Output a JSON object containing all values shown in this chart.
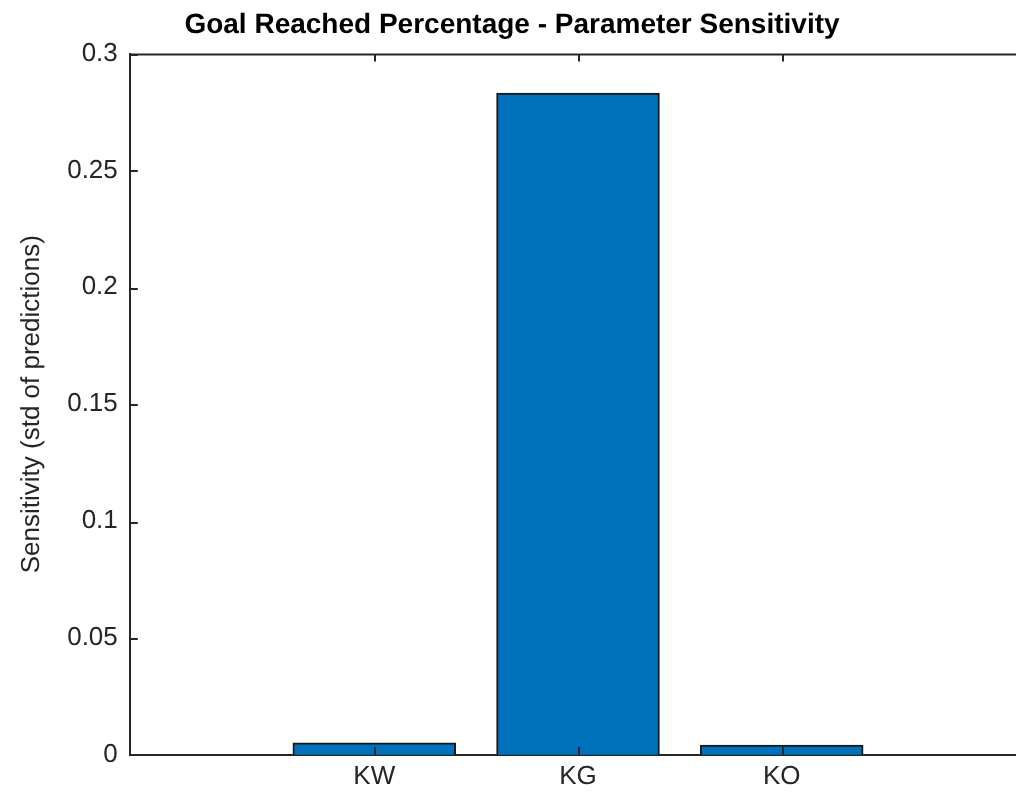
{
  "chart_data": {
    "type": "bar",
    "title": "Goal Reached Percentage - Parameter Sensitivity",
    "ylabel": "Sensitivity (std of predictions)",
    "categories": [
      "KW",
      "KG",
      "KO"
    ],
    "values": [
      0.005,
      0.283,
      0.004
    ],
    "color": "#0072bd",
    "ylim": [
      0,
      0.3
    ],
    "yticks": [
      0,
      0.05,
      0.1,
      0.15,
      0.2,
      0.25,
      0.3
    ],
    "grid": false,
    "legend": false
  }
}
